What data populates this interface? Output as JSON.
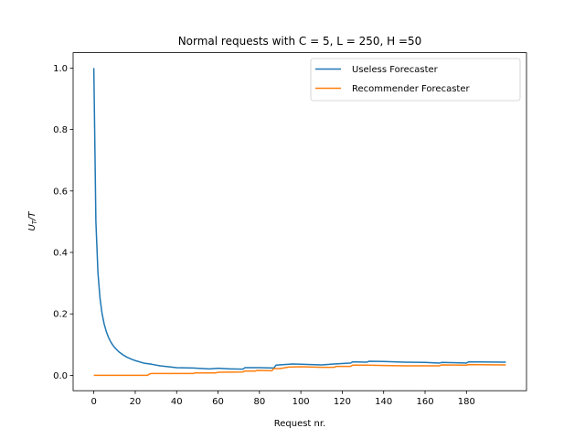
{
  "chart_data": {
    "type": "line",
    "title": "Normal requests with C = 5, L = 250, H =50",
    "xlabel": "Request nr.",
    "ylabel": "U_T/T",
    "xlim": [
      -10,
      209
    ],
    "ylim": [
      -0.05,
      1.05
    ],
    "xticks": [
      0,
      20,
      40,
      60,
      80,
      100,
      120,
      140,
      160,
      180
    ],
    "yticks": [
      0.0,
      0.2,
      0.4,
      0.6,
      0.8,
      1.0
    ],
    "ytick_labels": [
      "0.0",
      "0.2",
      "0.4",
      "0.6",
      "0.8",
      "1.0"
    ],
    "legend_position": "upper right",
    "grid": false,
    "series": [
      {
        "name": "Useless Forecaster",
        "color": "#1f77b4",
        "x": [
          0,
          1,
          2,
          3,
          4,
          5,
          6,
          7,
          8,
          9,
          10,
          12,
          14,
          16,
          18,
          20,
          24,
          28,
          32,
          36,
          40,
          48,
          56,
          60,
          66,
          72,
          73,
          80,
          87,
          88,
          96,
          100,
          110,
          116,
          124,
          125,
          132,
          133,
          140,
          150,
          160,
          167,
          168,
          180,
          181,
          199
        ],
        "values": [
          1.0,
          0.5,
          0.333,
          0.25,
          0.2,
          0.167,
          0.143,
          0.125,
          0.111,
          0.1,
          0.091,
          0.077,
          0.067,
          0.059,
          0.053,
          0.048,
          0.04,
          0.036,
          0.031,
          0.028,
          0.025,
          0.024,
          0.021,
          0.023,
          0.021,
          0.02,
          0.025,
          0.025,
          0.024,
          0.033,
          0.037,
          0.036,
          0.034,
          0.037,
          0.04,
          0.044,
          0.043,
          0.046,
          0.045,
          0.043,
          0.042,
          0.04,
          0.042,
          0.04,
          0.044,
          0.043
        ]
      },
      {
        "name": "Recommender Forecaster",
        "color": "#ff7f0e",
        "x": [
          0,
          26,
          27,
          28,
          48,
          49,
          59,
          60,
          72,
          73,
          78,
          79,
          86,
          87,
          90,
          94,
          100,
          110,
          116,
          117,
          124,
          125,
          132,
          140,
          150,
          160,
          167,
          168,
          180,
          181,
          199
        ],
        "values": [
          0.0,
          0.0,
          0.005,
          0.006,
          0.006,
          0.008,
          0.008,
          0.01,
          0.011,
          0.014,
          0.014,
          0.016,
          0.015,
          0.022,
          0.022,
          0.027,
          0.028,
          0.026,
          0.026,
          0.029,
          0.029,
          0.033,
          0.033,
          0.032,
          0.031,
          0.031,
          0.031,
          0.034,
          0.033,
          0.035,
          0.034
        ]
      }
    ]
  }
}
